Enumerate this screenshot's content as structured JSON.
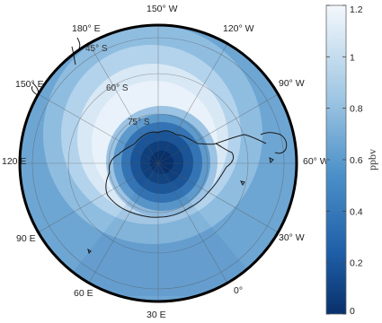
{
  "map": {
    "projection": "polar stereographic (south pole)",
    "longitude_labels": [
      "150° W",
      "120° W",
      "90° W",
      "60° W",
      "30° W",
      "0°",
      "30 E",
      "60 E",
      "90 E",
      "120 E",
      "150° E",
      "180° E"
    ],
    "latitude_labels": [
      "45° S",
      "60° S",
      "75° S"
    ],
    "shading_levels": [
      {
        "ring": "pole",
        "value": 0.05
      },
      {
        "ring": "inner",
        "value": 0.2
      },
      {
        "ring": "edge",
        "value": 0.55
      }
    ]
  },
  "colorbar": {
    "unit": "ppbv",
    "range": [
      0,
      1.2
    ],
    "ticks": [
      "0",
      "0.2",
      "0.4",
      "0.6",
      "0.8",
      "1",
      "1.2"
    ],
    "colors": {
      "low": "#08306b",
      "mid": "#4a90c8",
      "high": "#f4f8fc"
    }
  }
}
